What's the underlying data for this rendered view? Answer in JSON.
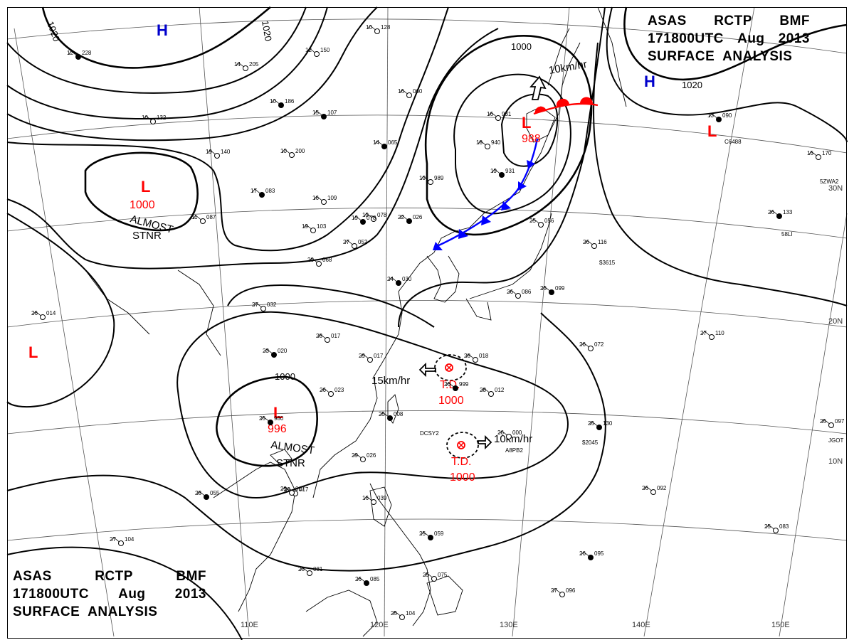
{
  "header": {
    "line1": [
      "ASAS",
      "RCTP",
      "BMF"
    ],
    "line2": [
      "171800UTC",
      "Aug",
      "2013"
    ],
    "line3": "SURFACE  ANALYSIS"
  },
  "colors": {
    "isobar": "#000000",
    "low": "#ff0000",
    "high": "#0000cc",
    "cold_front": "#0000ff",
    "warm_front": "#ff0000",
    "grid": "#555555",
    "coast": "#000000"
  },
  "lat_labels": [
    "30N",
    "20N",
    "10N"
  ],
  "lon_labels": [
    "110E",
    "120E",
    "130E",
    "140E",
    "150E"
  ],
  "pressure_systems": [
    {
      "type": "H",
      "id": "high-nw"
    },
    {
      "type": "H",
      "id": "high-ne"
    },
    {
      "type": "L",
      "id": "low-mongolia",
      "value": "1000",
      "note": [
        "ALMOST",
        "STNR"
      ]
    },
    {
      "type": "L",
      "id": "low-west"
    },
    {
      "type": "L",
      "id": "low-southchina",
      "value": "996",
      "note": [
        "ALMOST",
        "STNR"
      ]
    },
    {
      "type": "L",
      "id": "low-hokkaido",
      "value": "988"
    },
    {
      "type": "L",
      "id": "low-kamchatka"
    }
  ],
  "tropical": [
    {
      "id": "td-north",
      "label": "T.D.",
      "value": "1000",
      "motion": "15km/hr"
    },
    {
      "id": "td-south",
      "label": "T.D.",
      "value": "1000",
      "motion": "10km/hr"
    }
  ],
  "motions": {
    "hokkaido_low": "10km/hr"
  },
  "isobar_labels": [
    "1020",
    "1020",
    "1000",
    "1020",
    "1000"
  ],
  "stations": [
    {
      "t": "12",
      "p": "228"
    },
    {
      "t": "14",
      "p": "205"
    },
    {
      "t": "10",
      "p": "132"
    },
    {
      "t": "15",
      "p": "107"
    },
    {
      "t": "10",
      "p": "128"
    },
    {
      "t": "16",
      "p": "060"
    },
    {
      "t": "14",
      "p": "065"
    },
    {
      "t": "16",
      "p": "931"
    },
    {
      "t": "18",
      "p": "940"
    },
    {
      "t": "19",
      "p": "931"
    },
    {
      "t": "19",
      "p": "989"
    },
    {
      "t": "19",
      "p": "078"
    },
    {
      "t": "22",
      "p": "026"
    },
    {
      "t": "19",
      "p": "103"
    },
    {
      "t": "16",
      "p": "109"
    },
    {
      "t": "17",
      "p": "083"
    },
    {
      "t": "20",
      "p": "068"
    },
    {
      "t": "27",
      "p": "052"
    },
    {
      "t": "24",
      "p": "030"
    },
    {
      "t": "27",
      "p": "032"
    },
    {
      "t": "28",
      "p": "017"
    },
    {
      "t": "23",
      "p": "020"
    },
    {
      "t": "29",
      "p": "017"
    },
    {
      "t": "26",
      "p": "023"
    },
    {
      "t": "25",
      "p": "980"
    },
    {
      "t": "29",
      "p": "026"
    },
    {
      "t": "29",
      "p": "017"
    },
    {
      "t": "25",
      "p": "008"
    },
    {
      "t": "28",
      "p": "018"
    },
    {
      "t": "28",
      "p": "012"
    },
    {
      "t": "26",
      "p": "999"
    },
    {
      "t": "26",
      "p": "000"
    },
    {
      "t": "26",
      "p": "086"
    },
    {
      "t": "25",
      "p": "099"
    },
    {
      "t": "25",
      "p": "056"
    },
    {
      "t": "26",
      "p": "116"
    },
    {
      "t": "26",
      "p": "133"
    },
    {
      "t": "27",
      "p": "110"
    },
    {
      "t": "26",
      "p": "072"
    },
    {
      "t": "25",
      "p": "130"
    },
    {
      "t": "26",
      "p": "092"
    },
    {
      "t": "25",
      "p": "083"
    },
    {
      "t": "26",
      "p": "095"
    },
    {
      "t": "27",
      "p": "096"
    },
    {
      "t": "25",
      "p": "104"
    },
    {
      "t": "26",
      "p": "085"
    },
    {
      "t": "28",
      "p": "081"
    },
    {
      "t": "27",
      "p": "104"
    },
    {
      "t": "28",
      "p": "055"
    },
    {
      "t": "29",
      "p": "017"
    },
    {
      "t": "26",
      "p": "014"
    },
    {
      "t": "13",
      "p": "090"
    },
    {
      "t": "15",
      "p": "170"
    },
    {
      "t": "25",
      "p": "097"
    },
    {
      "t": "19",
      "p": "078"
    },
    {
      "t": "19",
      "p": "140"
    },
    {
      "t": "10",
      "p": "200"
    },
    {
      "t": "10",
      "p": "186"
    },
    {
      "t": "11",
      "p": "087"
    },
    {
      "t": "12",
      "p": "150"
    },
    {
      "t": "25",
      "p": "059"
    },
    {
      "t": "25",
      "p": "075"
    },
    {
      "t": "16",
      "p": "039"
    }
  ],
  "station_codes": [
    "DCSY2",
    "A8PB2",
    "C6488",
    "5ZWA2",
    "58LI",
    "$2045",
    "$3615",
    "JGOT"
  ]
}
